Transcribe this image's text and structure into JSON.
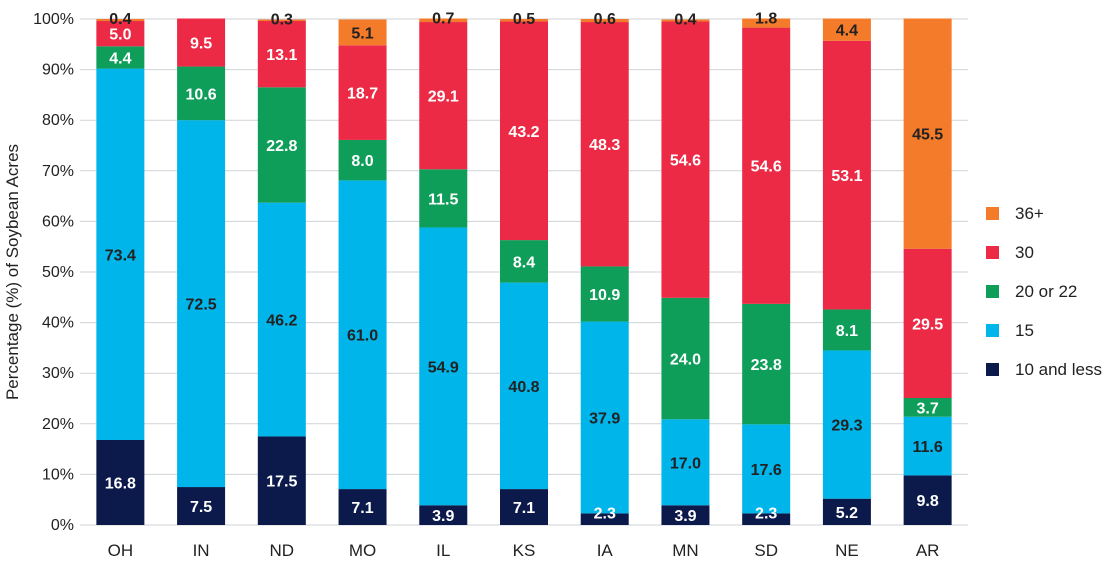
{
  "chart_data": {
    "type": "bar",
    "stacked": true,
    "title": "",
    "xlabel": "",
    "ylabel": "Percentage (%)  of Soybean Acres",
    "ylim": [
      0,
      100
    ],
    "yticks": [
      "0%",
      "10%",
      "20%",
      "30%",
      "40%",
      "50%",
      "60%",
      "70%",
      "80%",
      "90%",
      "100%"
    ],
    "grid": true,
    "legend_position": "right",
    "categories": [
      "OH",
      "IN",
      "ND",
      "MO",
      "IL",
      "KS",
      "IA",
      "MN",
      "SD",
      "NE",
      "AR"
    ],
    "series": [
      {
        "name": "10 and less",
        "color": "#0b1a4a",
        "label_color": "#ffffff",
        "values": [
          16.8,
          7.5,
          17.5,
          7.1,
          3.9,
          7.1,
          2.3,
          3.9,
          2.3,
          5.2,
          9.8
        ]
      },
      {
        "name": "15",
        "color": "#00b5ea",
        "label_color": "#222222",
        "values": [
          73.4,
          72.5,
          46.2,
          61.0,
          54.9,
          40.8,
          37.9,
          17.0,
          17.6,
          29.3,
          11.6
        ]
      },
      {
        "name": "20 or 22",
        "color": "#0e9e5a",
        "label_color": "#ffffff",
        "values": [
          4.4,
          10.6,
          22.8,
          8.0,
          11.5,
          8.4,
          10.9,
          24.0,
          23.8,
          8.1,
          3.7
        ]
      },
      {
        "name": "30",
        "color": "#ec2a45",
        "label_color": "#ffffff",
        "values": [
          5.0,
          9.5,
          13.1,
          18.7,
          29.1,
          43.2,
          48.3,
          54.6,
          54.6,
          53.1,
          29.5
        ]
      },
      {
        "name": "36+",
        "color": "#f47b2a",
        "label_color": "#222222",
        "values": [
          0.4,
          null,
          0.3,
          5.1,
          0.7,
          0.5,
          0.6,
          0.4,
          1.8,
          4.4,
          45.5
        ]
      }
    ]
  }
}
